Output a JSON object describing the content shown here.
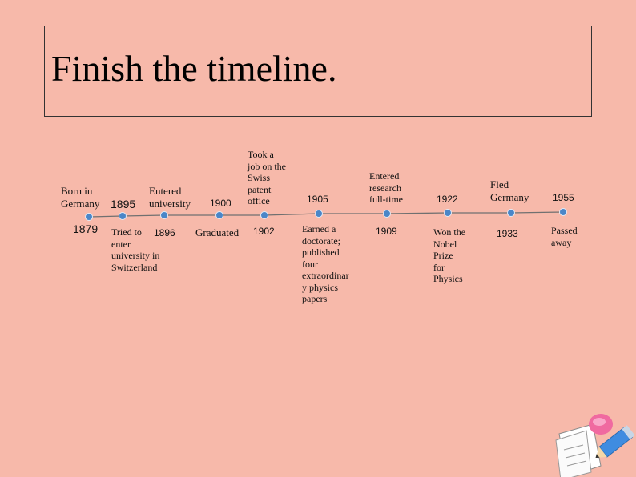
{
  "title": "Finish the timeline.",
  "colors": {
    "background": "#f7b9aa",
    "line": "#707070",
    "node": "#4a86c8"
  },
  "events": [
    {
      "id": "1879",
      "year": "1879",
      "event": "Born in\nGermany"
    },
    {
      "id": "1895",
      "year": "1895",
      "event": "Tried to\nenter\nuniversity in\nSwitzerland"
    },
    {
      "id": "1896",
      "year": "1896",
      "event": "Entered\nuniversity"
    },
    {
      "id": "1900",
      "year": "1900",
      "event": "Graduated"
    },
    {
      "id": "1902",
      "year": "1902",
      "event": "Took a\njob on the\nSwiss\npatent\noffice"
    },
    {
      "id": "1905",
      "year": "1905",
      "event": "Earned a\ndoctorate;\npublished\nfour\nextraordinar\ny physics\npapers"
    },
    {
      "id": "1909",
      "year": "1909",
      "event": "Entered\nresearch\nfull-time"
    },
    {
      "id": "1922",
      "year": "1922",
      "event": "Won the\nNobel\nPrize\nfor\nPhysics"
    },
    {
      "id": "1933",
      "year": "1933",
      "event": "Fled\nGermany"
    },
    {
      "id": "1955",
      "year": "1955",
      "event": "Passed\naway"
    }
  ],
  "decoration": {
    "icon": "pencil-note-icon"
  }
}
